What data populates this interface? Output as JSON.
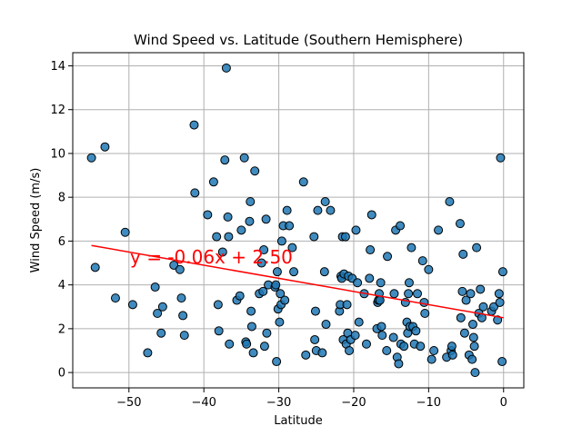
{
  "chart_data": {
    "type": "scatter",
    "title": "Wind Speed vs. Latitude (Southern Hemisphere)",
    "xlabel": "Latitude",
    "ylabel": "Wind Speed (m/s)",
    "xlim": [
      -57.5,
      2.7
    ],
    "ylim": [
      -0.7,
      14.6
    ],
    "xticks": [
      -50,
      -40,
      -30,
      -20,
      -10,
      0
    ],
    "yticks": [
      0,
      2,
      4,
      6,
      8,
      10,
      12,
      14
    ],
    "xtick_labels": [
      "−50",
      "−40",
      "−30",
      "−20",
      "−10",
      "0"
    ],
    "ytick_labels": [
      "0",
      "2",
      "4",
      "6",
      "8",
      "10",
      "12",
      "14"
    ],
    "grid": true,
    "marker_color": "#1f77b4",
    "line_color": "#ff0000",
    "regression": {
      "slope": -0.06,
      "intercept": 2.5,
      "x_range": [
        -55,
        0
      ]
    },
    "annotation": "y = -0.06x + 2.50",
    "points": [
      [
        -55.0,
        9.8
      ],
      [
        -54.5,
        4.8
      ],
      [
        -53.2,
        10.3
      ],
      [
        -51.8,
        3.4
      ],
      [
        -50.5,
        6.4
      ],
      [
        -49.5,
        3.1
      ],
      [
        -47.5,
        0.9
      ],
      [
        -46.5,
        3.9
      ],
      [
        -46.2,
        2.7
      ],
      [
        -45.7,
        1.8
      ],
      [
        -45.5,
        3.0
      ],
      [
        -44.0,
        4.9
      ],
      [
        -43.2,
        4.7
      ],
      [
        -43.0,
        3.4
      ],
      [
        -42.8,
        2.6
      ],
      [
        -42.6,
        1.7
      ],
      [
        -41.3,
        11.3
      ],
      [
        -41.2,
        8.2
      ],
      [
        -39.5,
        7.2
      ],
      [
        -38.7,
        8.7
      ],
      [
        -38.3,
        6.2
      ],
      [
        -38.1,
        3.1
      ],
      [
        -38.0,
        1.9
      ],
      [
        -37.5,
        5.5
      ],
      [
        -37.2,
        9.7
      ],
      [
        -37.0,
        13.9
      ],
      [
        -36.8,
        7.1
      ],
      [
        -36.7,
        6.2
      ],
      [
        -36.6,
        1.3
      ],
      [
        -35.6,
        3.3
      ],
      [
        -35.2,
        3.5
      ],
      [
        -35.0,
        6.5
      ],
      [
        -34.6,
        9.8
      ],
      [
        -34.4,
        1.4
      ],
      [
        -34.3,
        1.3
      ],
      [
        -33.9,
        6.9
      ],
      [
        -33.8,
        7.8
      ],
      [
        -33.7,
        2.8
      ],
      [
        -33.6,
        2.1
      ],
      [
        -33.4,
        0.9
      ],
      [
        -33.2,
        9.2
      ],
      [
        -32.6,
        3.6
      ],
      [
        -32.3,
        5.0
      ],
      [
        -32.1,
        3.7
      ],
      [
        -32.0,
        5.6
      ],
      [
        -31.9,
        1.2
      ],
      [
        -31.7,
        7.0
      ],
      [
        -31.6,
        1.8
      ],
      [
        -31.4,
        4.0
      ],
      [
        -30.5,
        3.9
      ],
      [
        -30.4,
        4.0
      ],
      [
        -30.3,
        0.5
      ],
      [
        -30.2,
        4.6
      ],
      [
        -30.1,
        2.9
      ],
      [
        -29.9,
        2.3
      ],
      [
        -29.8,
        3.6
      ],
      [
        -29.7,
        3.1
      ],
      [
        -29.6,
        6.0
      ],
      [
        -29.4,
        6.7
      ],
      [
        -29.2,
        3.3
      ],
      [
        -28.9,
        7.4
      ],
      [
        -28.6,
        6.7
      ],
      [
        -28.2,
        5.7
      ],
      [
        -28.0,
        4.6
      ],
      [
        -26.7,
        8.7
      ],
      [
        -26.4,
        0.8
      ],
      [
        -25.3,
        6.2
      ],
      [
        -25.2,
        1.5
      ],
      [
        -25.1,
        2.8
      ],
      [
        -25.0,
        1.0
      ],
      [
        -24.8,
        7.4
      ],
      [
        -24.2,
        0.9
      ],
      [
        -23.9,
        4.6
      ],
      [
        -23.8,
        7.8
      ],
      [
        -23.7,
        2.2
      ],
      [
        -23.1,
        7.4
      ],
      [
        -21.9,
        2.8
      ],
      [
        -21.8,
        3.1
      ],
      [
        -21.7,
        4.4
      ],
      [
        -21.6,
        4.3
      ],
      [
        -21.5,
        6.2
      ],
      [
        -21.4,
        1.5
      ],
      [
        -21.3,
        4.5
      ],
      [
        -21.1,
        6.2
      ],
      [
        -21.0,
        1.3
      ],
      [
        -20.9,
        3.1
      ],
      [
        -20.8,
        1.8
      ],
      [
        -20.7,
        4.4
      ],
      [
        -20.6,
        1.0
      ],
      [
        -20.4,
        1.5
      ],
      [
        -20.2,
        4.3
      ],
      [
        -19.8,
        1.7
      ],
      [
        -19.7,
        6.5
      ],
      [
        -19.5,
        4.1
      ],
      [
        -19.3,
        2.3
      ],
      [
        -18.6,
        3.6
      ],
      [
        -18.3,
        1.3
      ],
      [
        -17.9,
        4.3
      ],
      [
        -17.8,
        5.6
      ],
      [
        -17.6,
        7.2
      ],
      [
        -16.9,
        2.0
      ],
      [
        -16.8,
        3.2
      ],
      [
        -16.7,
        3.3
      ],
      [
        -16.6,
        3.6
      ],
      [
        -16.5,
        3.3
      ],
      [
        -16.4,
        4.1
      ],
      [
        -16.3,
        2.1
      ],
      [
        -16.2,
        1.7
      ],
      [
        -15.6,
        1.0
      ],
      [
        -15.5,
        5.3
      ],
      [
        -14.7,
        1.6
      ],
      [
        -14.6,
        3.6
      ],
      [
        -14.4,
        6.5
      ],
      [
        -14.2,
        0.7
      ],
      [
        -14.0,
        0.4
      ],
      [
        -13.8,
        6.7
      ],
      [
        -13.7,
        1.3
      ],
      [
        -13.3,
        1.2
      ],
      [
        -13.1,
        3.2
      ],
      [
        -12.9,
        2.3
      ],
      [
        -12.8,
        1.8
      ],
      [
        -12.7,
        3.6
      ],
      [
        -12.6,
        4.1
      ],
      [
        -12.5,
        2.1
      ],
      [
        -12.3,
        5.7
      ],
      [
        -12.1,
        2.1
      ],
      [
        -11.9,
        1.3
      ],
      [
        -11.7,
        1.9
      ],
      [
        -11.5,
        3.6
      ],
      [
        -11.1,
        1.2
      ],
      [
        -10.8,
        5.1
      ],
      [
        -10.6,
        3.2
      ],
      [
        -10.5,
        2.7
      ],
      [
        -10.0,
        4.7
      ],
      [
        -9.6,
        0.6
      ],
      [
        -9.3,
        1.0
      ],
      [
        -8.7,
        6.5
      ],
      [
        -7.6,
        0.7
      ],
      [
        -7.2,
        7.8
      ],
      [
        -7.0,
        1.0
      ],
      [
        -6.9,
        1.2
      ],
      [
        -6.8,
        0.8
      ],
      [
        -5.8,
        6.8
      ],
      [
        -5.7,
        2.5
      ],
      [
        -5.5,
        3.7
      ],
      [
        -5.4,
        5.4
      ],
      [
        -5.2,
        1.8
      ],
      [
        -5.0,
        3.3
      ],
      [
        -4.6,
        0.8
      ],
      [
        -4.4,
        3.6
      ],
      [
        -4.2,
        0.6
      ],
      [
        -4.1,
        2.2
      ],
      [
        -4.0,
        1.6
      ],
      [
        -3.9,
        1.2
      ],
      [
        -3.8,
        0.0
      ],
      [
        -3.6,
        5.7
      ],
      [
        -3.3,
        2.7
      ],
      [
        -3.1,
        3.8
      ],
      [
        -2.9,
        2.5
      ],
      [
        -2.7,
        3.0
      ],
      [
        -1.6,
        2.8
      ],
      [
        -1.3,
        3.0
      ],
      [
        -0.8,
        2.4
      ],
      [
        -0.6,
        3.6
      ],
      [
        -0.5,
        3.2
      ],
      [
        -0.4,
        9.8
      ],
      [
        -0.2,
        0.5
      ],
      [
        -0.1,
        4.6
      ]
    ]
  }
}
